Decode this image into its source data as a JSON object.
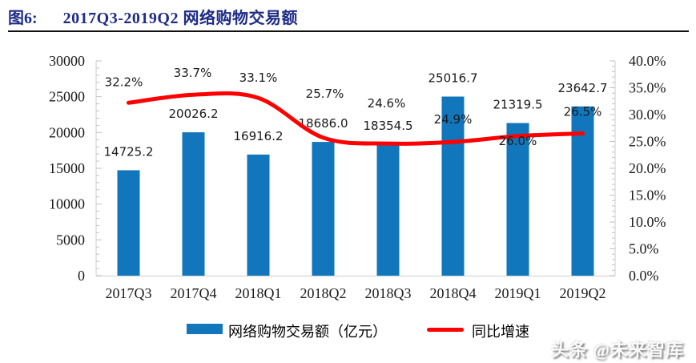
{
  "header": {
    "figure_label": "图6:",
    "title": "2017Q3-2019Q2 网络购物交易额"
  },
  "chart_data": {
    "type": "bar",
    "title": "2017Q3-2019Q2 网络购物交易额",
    "categories": [
      "2017Q3",
      "2017Q4",
      "2018Q1",
      "2018Q2",
      "2018Q3",
      "2018Q4",
      "2019Q1",
      "2019Q2"
    ],
    "series": [
      {
        "name": "网络购物交易额（亿元）",
        "type": "bar",
        "axis": "left",
        "color": "#1176bc",
        "values": [
          14725.2,
          20026.2,
          16916.2,
          18686.0,
          18354.5,
          25016.7,
          21319.5,
          23642.7
        ],
        "labels": [
          "14725.2",
          "20026.2",
          "16916.2",
          "18686.0",
          "18354.5",
          "25016.7",
          "21319.5",
          "23642.7"
        ]
      },
      {
        "name": "同比增速",
        "type": "line",
        "axis": "right",
        "color": "#ff0000",
        "values": [
          32.2,
          33.7,
          33.1,
          25.7,
          24.6,
          24.9,
          26.0,
          26.5
        ],
        "labels": [
          "32.2%",
          "33.7%",
          "33.1%",
          "25.7%",
          "24.6%",
          "24.9%",
          "26.0%",
          "26.5%"
        ]
      }
    ],
    "left_axis": {
      "min": 0,
      "max": 30000,
      "step": 5000,
      "minor_step": 1000,
      "ticks": [
        "0",
        "5000",
        "10000",
        "15000",
        "20000",
        "25000",
        "30000"
      ]
    },
    "right_axis": {
      "min": 0,
      "max": 40,
      "step": 5,
      "minor_step": 1,
      "ticks": [
        "0.0%",
        "5.0%",
        "10.0%",
        "15.0%",
        "20.0%",
        "25.0%",
        "30.0%",
        "35.0%",
        "40.0%"
      ]
    },
    "grid": false,
    "legend_position": "bottom",
    "smooth_line": true
  },
  "colors": {
    "bar": "#1176bc",
    "line": "#ff0000",
    "title": "#1f2c87",
    "axis": "#d6d6d6",
    "tick": "#c2c2c2",
    "text": "#1a1a1a"
  },
  "watermark": {
    "text": "头条 @未来智库"
  }
}
